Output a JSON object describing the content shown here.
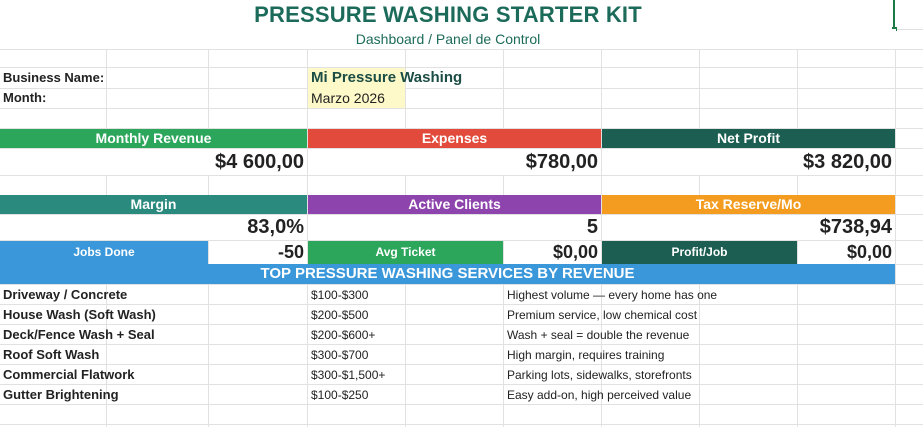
{
  "sheet": {
    "title": "PRESSURE WASHING STARTER KIT",
    "subtitle": "Dashboard / Panel de Control"
  },
  "business": {
    "name_label": "Business Name:",
    "name_value": "Mi Pressure Washing",
    "month_label": "Month:",
    "month_value": "Marzo 2026"
  },
  "kpis_row1": [
    {
      "label": "Monthly Revenue",
      "value": "$4 600,00",
      "color": "#2ca65a"
    },
    {
      "label": "Expenses",
      "value": "$780,00",
      "color": "#e24b3b"
    },
    {
      "label": "Net Profit",
      "value": "$3 820,00",
      "color": "#1c5e52"
    }
  ],
  "kpis_row2": [
    {
      "label": "Margin",
      "value": "83,0%",
      "color": "#2b8a7e"
    },
    {
      "label": "Active Clients",
      "value": "5",
      "color": "#8e44ad"
    },
    {
      "label": "Tax Reserve/Mo",
      "value": "$738,94",
      "color": "#f39c1f"
    }
  ],
  "kpis_row3": [
    {
      "label": "Jobs Done",
      "value": "-50",
      "color": "#3a97d9"
    },
    {
      "label": "Avg Ticket",
      "value": "$0,00",
      "color": "#2ca65a"
    },
    {
      "label": "Profit/Job",
      "value": "$0,00",
      "color": "#1c5e52"
    }
  ],
  "services": {
    "banner": "TOP PRESSURE WASHING SERVICES BY REVENUE",
    "rows": [
      {
        "name": "Driveway / Concrete",
        "range": "$100-$300",
        "note": "Highest volume — every home has one"
      },
      {
        "name": "House Wash (Soft Wash)",
        "range": "$200-$500",
        "note": "Premium service, low chemical cost"
      },
      {
        "name": "Deck/Fence Wash + Seal",
        "range": "$200-$600+",
        "note": "Wash + seal = double the revenue"
      },
      {
        "name": "Roof Soft Wash",
        "range": "$300-$700",
        "note": "High margin, requires training"
      },
      {
        "name": "Commercial Flatwork",
        "range": "$300-$1,500+",
        "note": "Parking lots, sidewalks, storefronts"
      },
      {
        "name": "Gutter Brightening",
        "range": "$100-$250",
        "note": "Easy add-on, high perceived value"
      }
    ]
  }
}
